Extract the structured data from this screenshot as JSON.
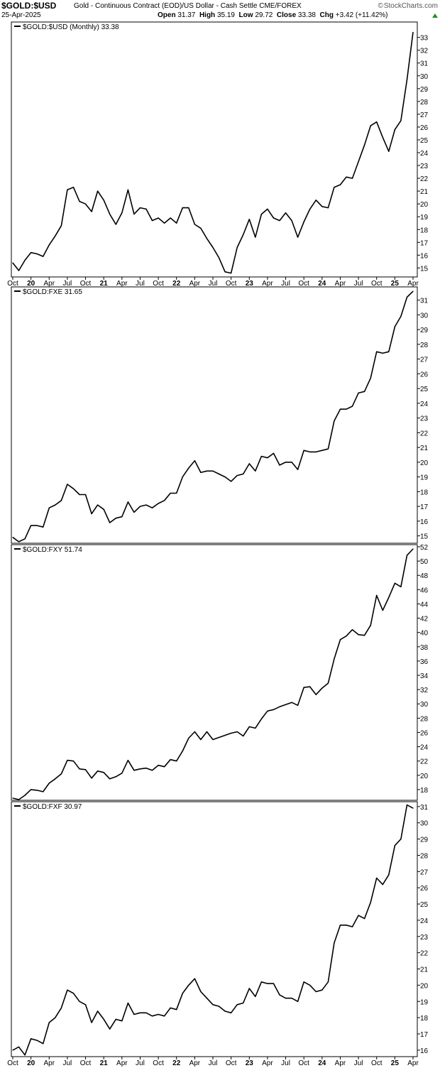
{
  "header": {
    "symbol": "$GOLD:$USD",
    "description": "Gold - Continuous Contract (EOD)/US Dollar - Cash Settle",
    "exchange": "CME/FOREX",
    "date": "25-Apr-2025",
    "open_label": "Open",
    "open": "31.37",
    "high_label": "High",
    "high": "35.19",
    "low_label": "Low",
    "low": "29.72",
    "close_label": "Close",
    "close": "33.38",
    "chg_label": "Chg",
    "chg": "+3.42 (+11.42%)",
    "brand": "StockCharts.com",
    "up_color": "#2a8a2a"
  },
  "chart_data": [
    {
      "type": "line",
      "legend": "$GOLD:$USD (Monthly) 33.38",
      "x_ticks": [
        "Oct",
        "20",
        "Apr",
        "Jul",
        "Oct",
        "21",
        "Apr",
        "Jul",
        "Oct",
        "22",
        "Apr",
        "Jul",
        "Oct",
        "23",
        "Apr",
        "Jul",
        "Oct",
        "24",
        "Apr",
        "Jul",
        "Oct",
        "25",
        "Apr"
      ],
      "bold_ticks": [
        "20",
        "21",
        "22",
        "23",
        "24",
        "25"
      ],
      "ylim": [
        14.3,
        34.2
      ],
      "y_ticks": [
        15,
        16,
        17,
        18,
        19,
        20,
        21,
        22,
        23,
        24,
        25,
        26,
        27,
        28,
        29,
        30,
        31,
        32,
        33
      ],
      "values": [
        15.4,
        14.8,
        15.6,
        16.2,
        16.1,
        15.9,
        16.8,
        17.5,
        18.3,
        21.1,
        21.3,
        20.2,
        20.0,
        19.4,
        21.0,
        20.3,
        19.2,
        18.4,
        19.3,
        21.1,
        19.2,
        19.7,
        19.6,
        18.7,
        18.9,
        18.5,
        18.9,
        18.5,
        19.7,
        19.7,
        18.4,
        18.1,
        17.3,
        16.6,
        15.8,
        14.7,
        14.6,
        16.6,
        17.6,
        18.8,
        17.4,
        19.2,
        19.6,
        18.9,
        18.7,
        19.3,
        18.7,
        17.4,
        18.6,
        19.6,
        20.3,
        19.8,
        19.7,
        21.3,
        21.5,
        22.1,
        22.0,
        23.3,
        24.6,
        26.1,
        26.4,
        25.2,
        24.1,
        25.8,
        26.5,
        29.7,
        33.4
      ]
    },
    {
      "type": "line",
      "legend": "$GOLD:FXE 31.65",
      "x_ticks": [],
      "ylim": [
        14.5,
        31.9
      ],
      "y_ticks": [
        15,
        16,
        17,
        18,
        19,
        20,
        21,
        22,
        23,
        24,
        25,
        26,
        27,
        28,
        29,
        30,
        31
      ],
      "values": [
        14.9,
        14.6,
        14.8,
        15.7,
        15.7,
        15.6,
        16.9,
        17.1,
        17.4,
        18.5,
        18.2,
        17.8,
        17.8,
        16.5,
        17.1,
        16.8,
        15.9,
        16.2,
        16.3,
        17.3,
        16.6,
        17.0,
        17.1,
        16.9,
        17.2,
        17.4,
        17.9,
        17.9,
        19.0,
        19.6,
        20.1,
        19.3,
        19.4,
        19.4,
        19.2,
        19.0,
        18.7,
        19.1,
        19.2,
        19.9,
        19.4,
        20.4,
        20.3,
        20.6,
        19.8,
        20.0,
        20.0,
        19.5,
        20.8,
        20.7,
        20.7,
        20.8,
        20.9,
        22.8,
        23.6,
        23.6,
        23.8,
        24.7,
        24.8,
        25.7,
        27.5,
        27.4,
        27.5,
        29.2,
        29.9,
        31.2,
        31.6
      ]
    },
    {
      "type": "line",
      "legend": "$GOLD:FXY 51.74",
      "x_ticks": [],
      "ylim": [
        16.5,
        52.3
      ],
      "y_ticks": [
        18,
        20,
        22,
        24,
        26,
        28,
        30,
        32,
        34,
        36,
        38,
        40,
        42,
        44,
        46,
        48,
        50,
        52
      ],
      "values": [
        16.8,
        16.6,
        17.2,
        18.0,
        17.9,
        17.7,
        18.9,
        19.5,
        20.2,
        22.1,
        22.0,
        20.9,
        20.8,
        19.6,
        20.6,
        20.4,
        19.5,
        19.8,
        20.3,
        22.1,
        20.7,
        20.9,
        21.0,
        20.7,
        21.4,
        21.2,
        22.2,
        22.0,
        23.4,
        25.2,
        26.1,
        25.0,
        26.1,
        25.0,
        25.3,
        25.6,
        25.9,
        26.1,
        25.5,
        26.8,
        26.6,
        27.9,
        29.0,
        29.2,
        29.6,
        29.9,
        30.2,
        29.8,
        32.3,
        32.4,
        31.3,
        32.2,
        32.9,
        36.3,
        39.0,
        39.5,
        40.4,
        39.7,
        39.6,
        41.0,
        45.2,
        43.1,
        44.9,
        46.9,
        46.4,
        50.8,
        51.7
      ]
    },
    {
      "type": "line",
      "legend": "$GOLD:FXF 30.97",
      "x_ticks": [
        "Oct",
        "20",
        "Apr",
        "Jul",
        "Oct",
        "21",
        "Apr",
        "Jul",
        "Oct",
        "22",
        "Apr",
        "Jul",
        "Oct",
        "23",
        "Apr",
        "Jul",
        "Oct",
        "24",
        "Apr",
        "Jul",
        "Oct",
        "25",
        "Apr"
      ],
      "bold_ticks": [
        "20",
        "21",
        "22",
        "23",
        "24",
        "25"
      ],
      "ylim": [
        15.6,
        31.3
      ],
      "y_ticks": [
        16,
        17,
        18,
        19,
        20,
        21,
        22,
        23,
        24,
        25,
        26,
        27,
        28,
        29,
        30,
        31
      ],
      "values": [
        16.0,
        16.2,
        15.7,
        16.7,
        16.6,
        16.4,
        17.7,
        18.0,
        18.6,
        19.7,
        19.5,
        19.0,
        18.8,
        17.7,
        18.4,
        17.9,
        17.3,
        17.9,
        17.8,
        18.9,
        18.2,
        18.3,
        18.3,
        18.1,
        18.2,
        18.1,
        18.6,
        18.5,
        19.5,
        20.0,
        20.4,
        19.6,
        19.2,
        18.8,
        18.7,
        18.4,
        18.3,
        18.8,
        18.9,
        19.8,
        19.3,
        20.2,
        20.1,
        20.1,
        19.4,
        19.2,
        19.2,
        19.0,
        20.2,
        20.0,
        19.6,
        19.7,
        20.2,
        22.6,
        23.7,
        23.7,
        23.6,
        24.3,
        24.1,
        25.1,
        26.6,
        26.2,
        26.8,
        28.6,
        29.0,
        31.1,
        30.9
      ]
    }
  ]
}
